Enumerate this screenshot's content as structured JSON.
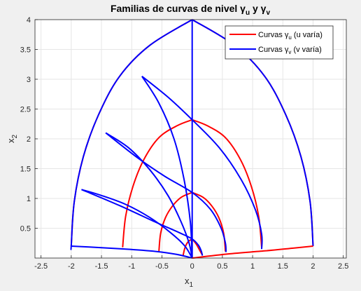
{
  "chart_data": {
    "type": "line",
    "title": {
      "main": "Familias de curvas de nivel ",
      "g1": "γ",
      "s1": "u",
      "mid": " y ",
      "g2": "γ",
      "s2": "v"
    },
    "xlabel": {
      "base": "x",
      "sub": "1"
    },
    "ylabel": {
      "base": "x",
      "sub": "2"
    },
    "xlim": [
      -2.6,
      2.55
    ],
    "ylim": [
      0,
      4
    ],
    "xticks": [
      "-2.5",
      "-2",
      "-1.5",
      "-1",
      "-0.5",
      "0",
      "0.5",
      "1",
      "1.5",
      "2",
      "2.5"
    ],
    "yticks": [
      "0.5",
      "1",
      "1.5",
      "2",
      "2.5",
      "3",
      "3.5",
      "4"
    ],
    "grid": true,
    "legend_position": "top-right",
    "colors": {
      "u": "#ff0000",
      "v": "#0000ff",
      "grid": "#e6e6e6",
      "axes_bg": "#ffffff"
    },
    "legend": [
      {
        "pre": "Curvas ",
        "g": "γ",
        "s": "u",
        "post": " (u varía)",
        "color": "#ff0000"
      },
      {
        "pre": "Curvas ",
        "g": "γ",
        "s": "v",
        "post": " (v varía)",
        "color": "#0000ff"
      }
    ],
    "series": [
      {
        "family": "u",
        "x": [
          -2.0,
          -1.95,
          -1.8,
          -1.55,
          -1.2,
          -0.7,
          0.0
        ],
        "y": [
          0.2,
          0.95,
          1.7,
          2.4,
          3.05,
          3.57,
          4.0
        ]
      },
      {
        "family": "u",
        "x": [
          -1.15,
          -1.1,
          -0.98,
          -0.8,
          -0.55,
          -0.25,
          0.0
        ],
        "y": [
          0.18,
          0.7,
          1.2,
          1.65,
          2.02,
          2.22,
          2.32
        ]
      },
      {
        "family": "u",
        "x": [
          -0.55,
          -0.52,
          -0.44,
          -0.32,
          -0.18,
          0.0
        ],
        "y": [
          0.11,
          0.42,
          0.68,
          0.88,
          1.02,
          1.1
        ]
      },
      {
        "family": "u",
        "x": [
          -0.15,
          -0.12,
          -0.07,
          0.0
        ],
        "y": [
          0.04,
          0.17,
          0.27,
          0.32
        ]
      },
      {
        "family": "u",
        "x": [
          0.0,
          0.07,
          0.13,
          0.17
        ],
        "y": [
          0.32,
          0.23,
          0.12,
          0.05
        ]
      },
      {
        "family": "u",
        "x": [
          0.0,
          0.18,
          0.32,
          0.44,
          0.52,
          0.55
        ],
        "y": [
          1.1,
          1.02,
          0.88,
          0.68,
          0.42,
          0.11
        ]
      },
      {
        "family": "u",
        "x": [
          0.0,
          0.25,
          0.55,
          0.8,
          0.98,
          1.1,
          1.15
        ],
        "y": [
          2.32,
          2.22,
          2.02,
          1.65,
          1.2,
          0.7,
          0.18
        ]
      },
      {
        "family": "u",
        "x": [
          0.0,
          0.7,
          1.2,
          1.55,
          1.8,
          1.95,
          2.0
        ],
        "y": [
          4.0,
          3.57,
          3.05,
          2.4,
          1.7,
          0.95,
          0.2
        ]
      },
      {
        "family": "v",
        "x": [
          -2.0,
          -1.6,
          -1.1,
          -0.6,
          -0.25,
          0.0
        ],
        "y": [
          0.2,
          0.18,
          0.15,
          0.11,
          0.06,
          0.0
        ]
      },
      {
        "family": "v",
        "x": [
          -1.83,
          -1.5,
          -1.1,
          -0.7,
          -0.35,
          -0.12,
          0.0
        ],
        "y": [
          1.15,
          1.05,
          0.9,
          0.68,
          0.42,
          0.2,
          0.0
        ]
      },
      {
        "family": "v",
        "x": [
          -1.43,
          -1.05,
          -0.7,
          -0.4,
          -0.18,
          -0.05,
          0.0
        ],
        "y": [
          2.1,
          1.85,
          1.48,
          1.05,
          0.6,
          0.25,
          0.0
        ]
      },
      {
        "family": "v",
        "x": [
          -0.83,
          -0.55,
          -0.3,
          -0.13,
          -0.03,
          0.0
        ],
        "y": [
          3.05,
          2.6,
          2.0,
          1.3,
          0.6,
          0.0
        ]
      },
      {
        "family": "v",
        "x": [
          0.0,
          0.0
        ],
        "y": [
          4.0,
          0.0
        ]
      },
      {
        "family": "v",
        "x": [
          0.0,
          0.7,
          1.2,
          1.55,
          1.8,
          1.95,
          2.0
        ],
        "y": [
          4.0,
          3.57,
          3.05,
          2.4,
          1.7,
          0.95,
          0.2
        ]
      },
      {
        "family": "v",
        "x": [
          -0.83,
          -0.4,
          0.0,
          0.45,
          0.82,
          1.05,
          1.15,
          1.15
        ],
        "y": [
          3.05,
          2.7,
          2.32,
          1.85,
          1.3,
          0.8,
          0.4,
          0.15
        ]
      },
      {
        "family": "v",
        "x": [
          -1.43,
          -0.9,
          -0.45,
          0.0,
          0.3,
          0.48,
          0.55,
          0.56
        ],
        "y": [
          2.1,
          1.68,
          1.37,
          1.1,
          0.82,
          0.5,
          0.25,
          0.1
        ]
      },
      {
        "family": "v",
        "x": [
          -1.83,
          -1.2,
          -0.6,
          -0.2,
          0.0,
          0.1,
          0.15,
          0.17
        ],
        "y": [
          1.15,
          0.88,
          0.6,
          0.42,
          0.32,
          0.22,
          0.12,
          0.04
        ]
      },
      {
        "family": "v",
        "x": [
          -2.0,
          -2.0,
          -1.95,
          -1.8,
          -1.55,
          -1.2,
          -0.7,
          0.0
        ],
        "y": [
          0.2,
          0.2,
          0.95,
          1.7,
          2.4,
          3.05,
          3.57,
          4.0
        ]
      }
    ],
    "boundary": {
      "family": "u",
      "x": [
        0.0,
        0.6,
        1.2,
        1.7,
        2.0
      ],
      "y": [
        0.0,
        0.07,
        0.12,
        0.17,
        0.2
      ]
    }
  }
}
